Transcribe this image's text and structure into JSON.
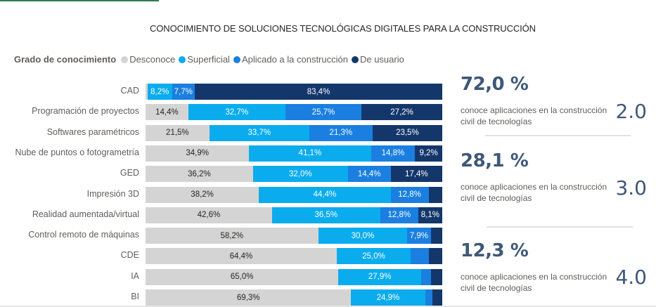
{
  "title": "CONOCIMIENTO DE SOLUCIONES TECNOLÓGICAS DIGITALES PARA LA CONSTRUCCIÓN",
  "legend": {
    "title": "Grado de conocimiento",
    "items": [
      {
        "label": "Desconoce",
        "color": "#d4d4d4"
      },
      {
        "label": "Superficial",
        "color": "#0aacee"
      },
      {
        "label": "Aplicado a la construcción",
        "color": "#1a7fe0"
      },
      {
        "label": "De usuario",
        "color": "#14376b"
      }
    ]
  },
  "chart_data": {
    "type": "bar",
    "orientation": "horizontal",
    "stacked": "100%",
    "title": "CONOCIMIENTO DE SOLUCIONES TECNOLÓGICAS DIGITALES PARA LA CONSTRUCCIÓN",
    "xlabel": "",
    "ylabel": "",
    "xlim": [
      0,
      100
    ],
    "legend_position": "top-left",
    "grid": false,
    "categories": [
      "CAD",
      "Programación de proyectos",
      "Softwares paramétricos",
      "Nube de puntos o fotogrametría",
      "GED",
      "Impresión 3D",
      "Realidad aumentada/virtual",
      "Control remoto de máquinas",
      "CDE",
      "IA",
      "BI"
    ],
    "series": [
      {
        "name": "Desconoce",
        "color": "#d4d4d4",
        "text_color": "#252423",
        "values": [
          0.7,
          14.4,
          21.5,
          34.9,
          36.2,
          38.2,
          42.6,
          58.2,
          64.4,
          65.0,
          69.3
        ],
        "labels": [
          "",
          "14,4%",
          "21,5%",
          "34,9%",
          "36,2%",
          "38,2%",
          "42,6%",
          "58,2%",
          "64,4%",
          "65,0%",
          "69,3%"
        ]
      },
      {
        "name": "Superficial",
        "color": "#0aacee",
        "text_color": "#ffffff",
        "values": [
          8.2,
          32.7,
          33.7,
          41.1,
          32.0,
          44.4,
          36.5,
          30.0,
          25.0,
          27.9,
          24.9
        ],
        "labels": [
          "8,2%",
          "32,7%",
          "33,7%",
          "41,1%",
          "32,0%",
          "44,4%",
          "36,5%",
          "30,0%",
          "25,0%",
          "27,9%",
          "24,9%"
        ]
      },
      {
        "name": "Aplicado a la construcción",
        "color": "#1a7fe0",
        "text_color": "#ffffff",
        "values": [
          7.7,
          25.7,
          21.3,
          14.8,
          14.4,
          12.8,
          12.8,
          7.9,
          6.0,
          3.3,
          2.6
        ],
        "labels": [
          "7,7%",
          "25,7%",
          "21,3%",
          "14,8%",
          "14,4%",
          "12,8%",
          "12,8%",
          "7,9%",
          "",
          "",
          ""
        ]
      },
      {
        "name": "De usuario",
        "color": "#14376b",
        "text_color": "#ffffff",
        "values": [
          83.4,
          27.2,
          23.5,
          9.2,
          17.4,
          4.6,
          8.1,
          3.9,
          4.6,
          3.8,
          3.2
        ],
        "labels": [
          "83,4%",
          "27,2%",
          "23,5%",
          "9,2%",
          "17,4%",
          "",
          "8,1%",
          "",
          "",
          "",
          ""
        ]
      }
    ]
  },
  "kpis": [
    {
      "value": "72,0 %",
      "description_line1": "conoce aplicaciones en la construcción",
      "description_line2": "civil de tecnologías",
      "number": "2.0"
    },
    {
      "value": "28,1 %",
      "description_line1": "conoce aplicaciones en la construcción",
      "description_line2": "civil de tecnologías",
      "number": "3.0"
    },
    {
      "value": "12,3 %",
      "description_line1": "conoce aplicaciones en la construcción",
      "description_line2": "civil de tecnologías",
      "number": "4.0"
    }
  ]
}
